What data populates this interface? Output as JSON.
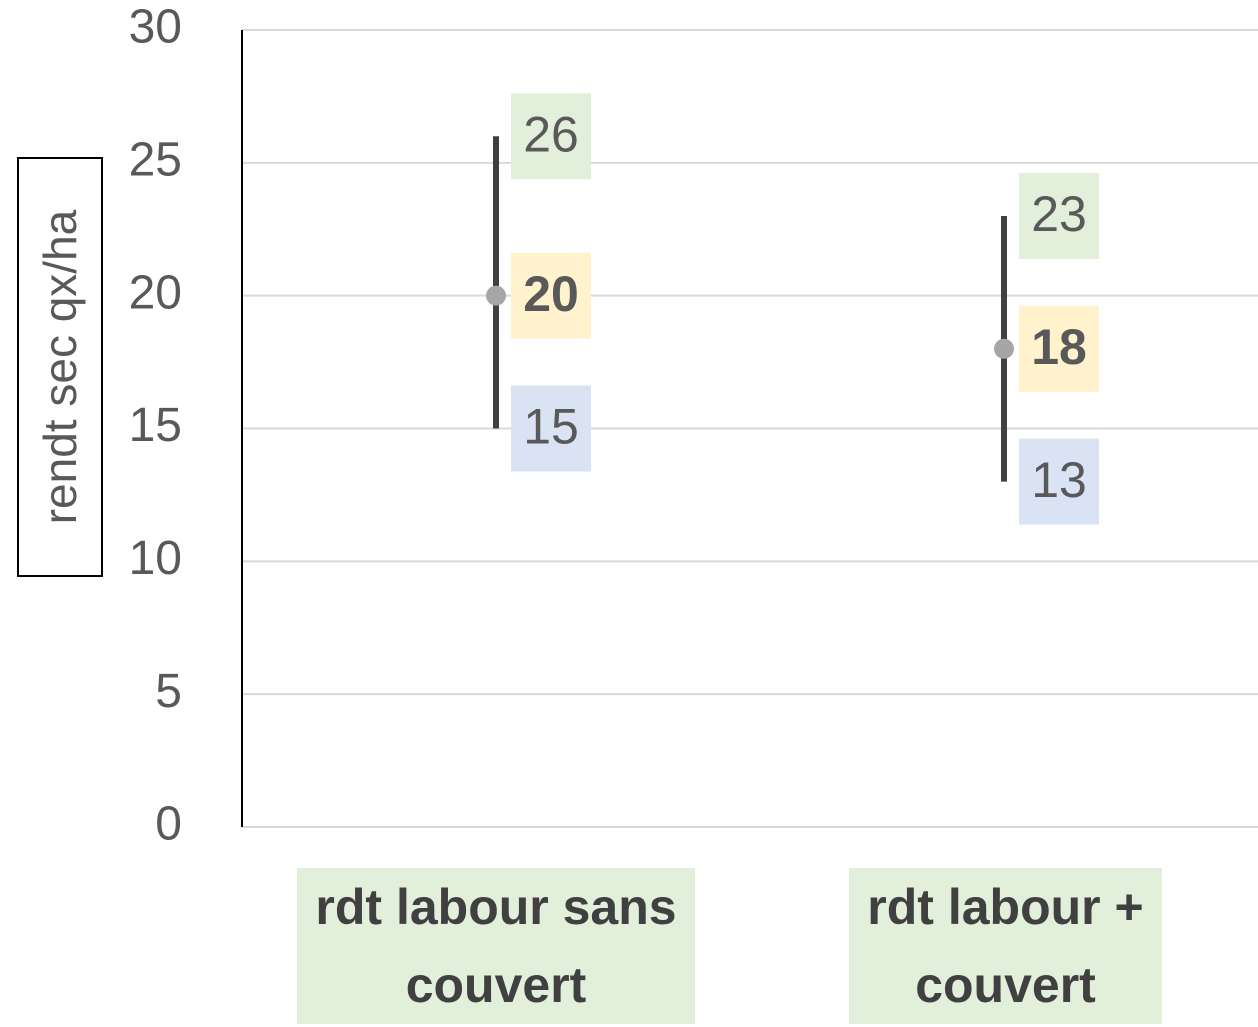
{
  "chart_data": {
    "type": "range",
    "y_label": "rendt sec qx/ha",
    "categories": [
      "rdt labour sans couvert",
      "rdt labour + couvert"
    ],
    "highs": [
      26,
      23
    ],
    "means": [
      20,
      18
    ],
    "lows": [
      15,
      13
    ],
    "color": "#404040",
    "mean_color": "#a6a6a6",
    "ylim": [
      0,
      30
    ],
    "yticks": [
      0,
      5,
      10,
      15,
      20,
      25,
      30
    ],
    "grid": true
  }
}
